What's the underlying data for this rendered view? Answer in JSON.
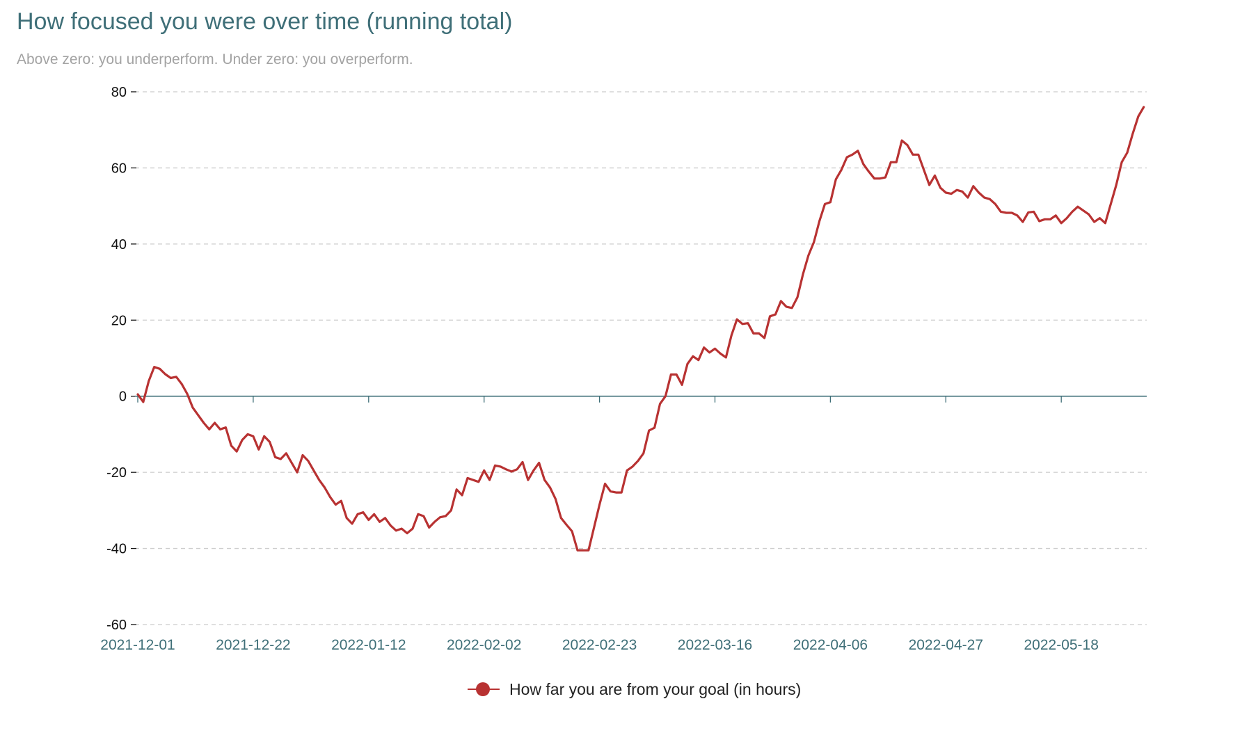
{
  "chart_data": {
    "type": "line",
    "title": "How focused you were over time (running total)",
    "subtitle": "Above zero: you underperform. Under zero: you overperform.",
    "xlabel": "",
    "ylabel": "",
    "ylim": [
      -60,
      80
    ],
    "yticks": [
      80,
      60,
      40,
      20,
      0,
      -20,
      -40,
      -60
    ],
    "ytick_labels": [
      "80",
      "60",
      "40",
      "20",
      "0",
      "-20",
      "-40",
      "-60"
    ],
    "xticks": [
      "2021-12-01",
      "2021-12-22",
      "2022-01-12",
      "2022-02-02",
      "2022-02-23",
      "2022-03-16",
      "2022-04-06",
      "2022-04-27",
      "2022-05-18"
    ],
    "grid": "horizontal dashed",
    "legend_position": "bottom-center",
    "colors": {
      "series": "#b83232",
      "axis": "#3f6f78",
      "grid": "#cccccc",
      "title": "#3f6f78",
      "subtitle": "#a3a3a3"
    },
    "series": [
      {
        "name": "How far you are from your goal (in hours)",
        "points": [
          [
            "2021-12-01",
            0.5
          ],
          [
            "2021-12-02",
            -1.5
          ],
          [
            "2021-12-03",
            4.0
          ],
          [
            "2021-12-04",
            7.7
          ],
          [
            "2021-12-05",
            7.2
          ],
          [
            "2021-12-06",
            5.8
          ],
          [
            "2021-12-07",
            4.8
          ],
          [
            "2021-12-08",
            5.1
          ],
          [
            "2021-12-09",
            3.2
          ],
          [
            "2021-12-10",
            0.6
          ],
          [
            "2021-12-11",
            -3.0
          ],
          [
            "2021-12-12",
            -5.0
          ],
          [
            "2021-12-13",
            -7.0
          ],
          [
            "2021-12-14",
            -8.7
          ],
          [
            "2021-12-15",
            -7.0
          ],
          [
            "2021-12-16",
            -8.7
          ],
          [
            "2021-12-17",
            -8.2
          ],
          [
            "2021-12-18",
            -13.0
          ],
          [
            "2021-12-19",
            -14.5
          ],
          [
            "2021-12-20",
            -11.5
          ],
          [
            "2021-12-21",
            -10.0
          ],
          [
            "2021-12-22",
            -10.5
          ],
          [
            "2021-12-23",
            -14.0
          ],
          [
            "2021-12-24",
            -10.5
          ],
          [
            "2021-12-25",
            -12.0
          ],
          [
            "2021-12-26",
            -16.0
          ],
          [
            "2021-12-27",
            -16.5
          ],
          [
            "2021-12-28",
            -15.0
          ],
          [
            "2021-12-29",
            -17.5
          ],
          [
            "2021-12-30",
            -20.0
          ],
          [
            "2021-12-31",
            -15.5
          ],
          [
            "2022-01-01",
            -17.0
          ],
          [
            "2022-01-02",
            -19.5
          ],
          [
            "2022-01-03",
            -22.0
          ],
          [
            "2022-01-04",
            -24.0
          ],
          [
            "2022-01-05",
            -26.5
          ],
          [
            "2022-01-06",
            -28.5
          ],
          [
            "2022-01-07",
            -27.5
          ],
          [
            "2022-01-08",
            -32.0
          ],
          [
            "2022-01-09",
            -33.5
          ],
          [
            "2022-01-10",
            -31.0
          ],
          [
            "2022-01-11",
            -30.5
          ],
          [
            "2022-01-12",
            -32.5
          ],
          [
            "2022-01-13",
            -31.0
          ],
          [
            "2022-01-14",
            -33.0
          ],
          [
            "2022-01-15",
            -32.0
          ],
          [
            "2022-01-16",
            -34.0
          ],
          [
            "2022-01-17",
            -35.3
          ],
          [
            "2022-01-18",
            -34.8
          ],
          [
            "2022-01-19",
            -36.0
          ],
          [
            "2022-01-20",
            -34.8
          ],
          [
            "2022-01-21",
            -31.0
          ],
          [
            "2022-01-22",
            -31.5
          ],
          [
            "2022-01-23",
            -34.5
          ],
          [
            "2022-01-24",
            -33.0
          ],
          [
            "2022-01-25",
            -31.8
          ],
          [
            "2022-01-26",
            -31.5
          ],
          [
            "2022-01-27",
            -30.0
          ],
          [
            "2022-01-28",
            -24.5
          ],
          [
            "2022-01-29",
            -26.0
          ],
          [
            "2022-01-30",
            -21.5
          ],
          [
            "2022-01-31",
            -22.0
          ],
          [
            "2022-02-01",
            -22.5
          ],
          [
            "2022-02-02",
            -19.5
          ],
          [
            "2022-02-03",
            -22.0
          ],
          [
            "2022-02-04",
            -18.2
          ],
          [
            "2022-02-05",
            -18.5
          ],
          [
            "2022-02-06",
            -19.2
          ],
          [
            "2022-02-07",
            -19.8
          ],
          [
            "2022-02-08",
            -19.2
          ],
          [
            "2022-02-09",
            -17.3
          ],
          [
            "2022-02-10",
            -22.0
          ],
          [
            "2022-02-11",
            -19.5
          ],
          [
            "2022-02-12",
            -17.5
          ],
          [
            "2022-02-13",
            -22.0
          ],
          [
            "2022-02-14",
            -24.0
          ],
          [
            "2022-02-15",
            -27.0
          ],
          [
            "2022-02-16",
            -32.0
          ],
          [
            "2022-02-17",
            -33.8
          ],
          [
            "2022-02-18",
            -35.5
          ],
          [
            "2022-02-19",
            -40.5
          ],
          [
            "2022-02-20",
            -40.5
          ],
          [
            "2022-02-21",
            -40.5
          ],
          [
            "2022-02-22",
            -34.5
          ],
          [
            "2022-02-23",
            -28.5
          ],
          [
            "2022-02-24",
            -23.0
          ],
          [
            "2022-02-25",
            -25.0
          ],
          [
            "2022-02-26",
            -25.3
          ],
          [
            "2022-02-27",
            -25.3
          ],
          [
            "2022-02-28",
            -19.5
          ],
          [
            "2022-03-01",
            -18.5
          ],
          [
            "2022-03-02",
            -17.0
          ],
          [
            "2022-03-03",
            -15.0
          ],
          [
            "2022-03-04",
            -9.0
          ],
          [
            "2022-03-05",
            -8.3
          ],
          [
            "2022-03-06",
            -2.0
          ],
          [
            "2022-03-07",
            0.0
          ],
          [
            "2022-03-08",
            5.7
          ],
          [
            "2022-03-09",
            5.7
          ],
          [
            "2022-03-10",
            3.0
          ],
          [
            "2022-03-11",
            8.5
          ],
          [
            "2022-03-12",
            10.5
          ],
          [
            "2022-03-13",
            9.5
          ],
          [
            "2022-03-14",
            12.8
          ],
          [
            "2022-03-15",
            11.5
          ],
          [
            "2022-03-16",
            12.5
          ],
          [
            "2022-03-17",
            11.2
          ],
          [
            "2022-03-18",
            10.2
          ],
          [
            "2022-03-19",
            16.0
          ],
          [
            "2022-03-20",
            20.2
          ],
          [
            "2022-03-21",
            19.0
          ],
          [
            "2022-03-22",
            19.2
          ],
          [
            "2022-03-23",
            16.5
          ],
          [
            "2022-03-24",
            16.5
          ],
          [
            "2022-03-25",
            15.3
          ],
          [
            "2022-03-26",
            21.0
          ],
          [
            "2022-03-27",
            21.5
          ],
          [
            "2022-03-28",
            25.0
          ],
          [
            "2022-03-29",
            23.5
          ],
          [
            "2022-03-30",
            23.2
          ],
          [
            "2022-03-31",
            26.0
          ],
          [
            "2022-04-01",
            32.0
          ],
          [
            "2022-04-02",
            37.0
          ],
          [
            "2022-04-03",
            40.5
          ],
          [
            "2022-04-04",
            46.0
          ],
          [
            "2022-04-05",
            50.5
          ],
          [
            "2022-04-06",
            51.0
          ],
          [
            "2022-04-07",
            57.0
          ],
          [
            "2022-04-08",
            59.5
          ],
          [
            "2022-04-09",
            62.8
          ],
          [
            "2022-04-10",
            63.5
          ],
          [
            "2022-04-11",
            64.5
          ],
          [
            "2022-04-12",
            61.0
          ],
          [
            "2022-04-13",
            59.0
          ],
          [
            "2022-04-14",
            57.2
          ],
          [
            "2022-04-15",
            57.2
          ],
          [
            "2022-04-16",
            57.5
          ],
          [
            "2022-04-17",
            61.5
          ],
          [
            "2022-04-18",
            61.5
          ],
          [
            "2022-04-19",
            67.2
          ],
          [
            "2022-04-20",
            66.0
          ],
          [
            "2022-04-21",
            63.5
          ],
          [
            "2022-04-22",
            63.5
          ],
          [
            "2022-04-23",
            59.5
          ],
          [
            "2022-04-24",
            55.5
          ],
          [
            "2022-04-25",
            58.0
          ],
          [
            "2022-04-26",
            54.8
          ],
          [
            "2022-04-27",
            53.5
          ],
          [
            "2022-04-28",
            53.2
          ],
          [
            "2022-04-29",
            54.2
          ],
          [
            "2022-04-30",
            53.8
          ],
          [
            "2022-05-01",
            52.2
          ],
          [
            "2022-05-02",
            55.2
          ],
          [
            "2022-05-03",
            53.5
          ],
          [
            "2022-05-04",
            52.2
          ],
          [
            "2022-05-05",
            51.8
          ],
          [
            "2022-05-06",
            50.5
          ],
          [
            "2022-05-07",
            48.5
          ],
          [
            "2022-05-08",
            48.2
          ],
          [
            "2022-05-09",
            48.2
          ],
          [
            "2022-05-10",
            47.5
          ],
          [
            "2022-05-11",
            45.8
          ],
          [
            "2022-05-12",
            48.3
          ],
          [
            "2022-05-13",
            48.5
          ],
          [
            "2022-05-14",
            46.0
          ],
          [
            "2022-05-15",
            46.5
          ],
          [
            "2022-05-16",
            46.5
          ],
          [
            "2022-05-17",
            47.5
          ],
          [
            "2022-05-18",
            45.5
          ],
          [
            "2022-05-19",
            46.8
          ],
          [
            "2022-05-20",
            48.5
          ],
          [
            "2022-05-21",
            49.8
          ],
          [
            "2022-05-22",
            48.8
          ],
          [
            "2022-05-23",
            47.8
          ],
          [
            "2022-05-24",
            45.8
          ],
          [
            "2022-05-25",
            46.8
          ],
          [
            "2022-05-26",
            45.5
          ],
          [
            "2022-05-27",
            50.5
          ],
          [
            "2022-05-28",
            55.5
          ],
          [
            "2022-05-29",
            61.5
          ],
          [
            "2022-05-30",
            64.0
          ],
          [
            "2022-05-31",
            69.0
          ],
          [
            "2022-06-01",
            73.5
          ],
          [
            "2022-06-02",
            76.0
          ]
        ]
      }
    ]
  }
}
